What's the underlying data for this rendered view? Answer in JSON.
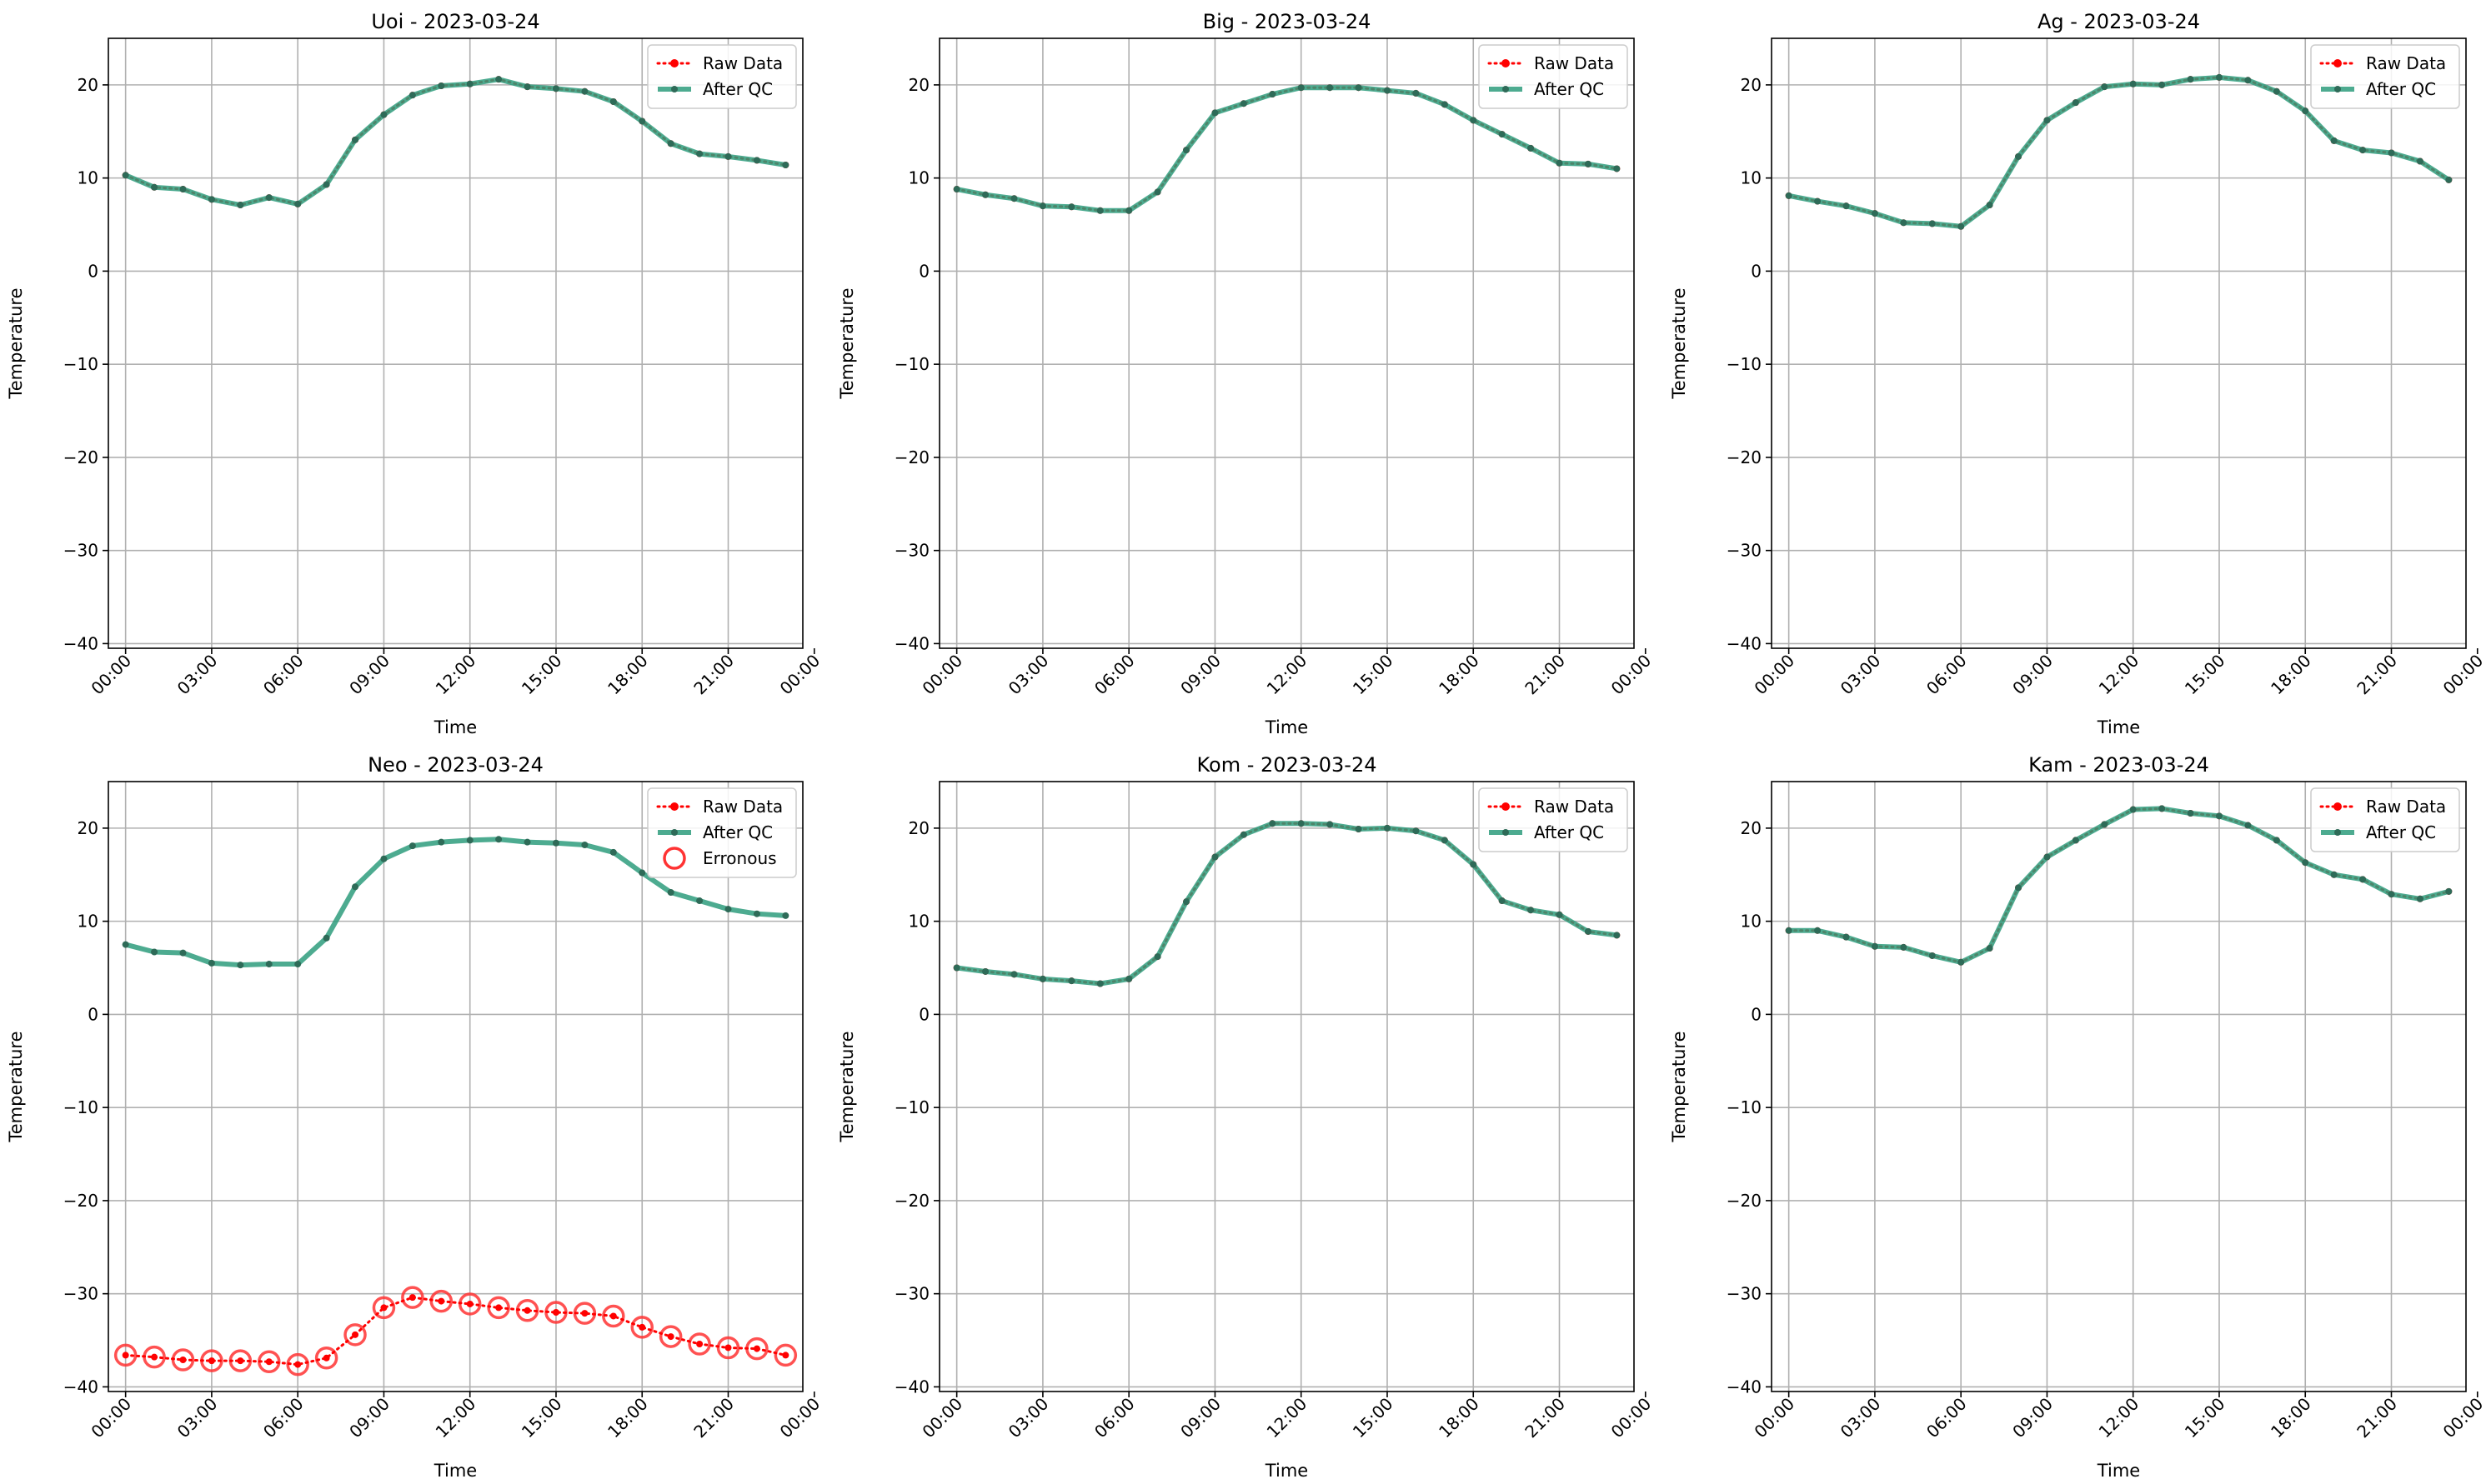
{
  "figure": {
    "colors": {
      "raw": "#ff0000",
      "qc": "#2e9c7c",
      "qc_marker": "#2e6b58",
      "erroneous": "#ff3333",
      "grid": "#b0b0b0",
      "axis": "#000000"
    }
  },
  "chart_data": [
    {
      "type": "line",
      "title": "Uoi - 2023-03-24",
      "xlabel": "Time",
      "ylabel": "Temperature",
      "ylim": [
        -40.5,
        25
      ],
      "xlim": [
        -0.6,
        23.6
      ],
      "yticks": [
        "−40",
        "−30",
        "−20",
        "−10",
        "0",
        "10",
        "20"
      ],
      "xticks": [
        "00:00",
        "03:00",
        "06:00",
        "09:00",
        "12:00",
        "15:00",
        "18:00",
        "21:00",
        "00:00"
      ],
      "legend": {
        "placement": "top-right",
        "entries": [
          "Raw Data",
          "After QC"
        ]
      },
      "grid": true,
      "x_hours": [
        0,
        1,
        2,
        3,
        4,
        5,
        6,
        7,
        8,
        9,
        10,
        11,
        12,
        13,
        14,
        15,
        16,
        17,
        18,
        19,
        20,
        21,
        22,
        23
      ],
      "series": [
        {
          "name": "Raw Data",
          "style": "dotted-red",
          "values": [
            10.3,
            9.0,
            8.8,
            7.7,
            7.1,
            7.9,
            7.2,
            9.3,
            14.1,
            16.8,
            18.9,
            19.9,
            20.1,
            20.6,
            19.8,
            19.6,
            19.3,
            18.2,
            16.1,
            13.7,
            12.6,
            12.3,
            11.9,
            11.4
          ]
        },
        {
          "name": "After QC",
          "style": "solid-green",
          "values": [
            10.3,
            9.0,
            8.8,
            7.7,
            7.1,
            7.9,
            7.2,
            9.3,
            14.1,
            16.8,
            18.9,
            19.9,
            20.1,
            20.6,
            19.8,
            19.6,
            19.3,
            18.2,
            16.1,
            13.7,
            12.6,
            12.3,
            11.9,
            11.4
          ]
        }
      ]
    },
    {
      "type": "line",
      "title": "Big - 2023-03-24",
      "xlabel": "Time",
      "ylabel": "Temperature",
      "ylim": [
        -40.5,
        25
      ],
      "xlim": [
        -0.6,
        23.6
      ],
      "yticks": [
        "−40",
        "−30",
        "−20",
        "−10",
        "0",
        "10",
        "20"
      ],
      "xticks": [
        "00:00",
        "03:00",
        "06:00",
        "09:00",
        "12:00",
        "15:00",
        "18:00",
        "21:00",
        "00:00"
      ],
      "legend": {
        "placement": "top-right",
        "entries": [
          "Raw Data",
          "After QC"
        ]
      },
      "grid": true,
      "x_hours": [
        0,
        1,
        2,
        3,
        4,
        5,
        6,
        7,
        8,
        9,
        10,
        11,
        12,
        13,
        14,
        15,
        16,
        17,
        18,
        19,
        20,
        21,
        22,
        23
      ],
      "series": [
        {
          "name": "Raw Data",
          "style": "dotted-red",
          "values": [
            8.8,
            8.2,
            7.8,
            7.0,
            6.9,
            6.5,
            6.5,
            8.5,
            13.0,
            17.0,
            18.0,
            19.0,
            19.7,
            19.7,
            19.7,
            19.4,
            19.1,
            17.9,
            16.2,
            14.7,
            13.2,
            11.6,
            11.5,
            11.0
          ]
        },
        {
          "name": "After QC",
          "style": "solid-green",
          "values": [
            8.8,
            8.2,
            7.8,
            7.0,
            6.9,
            6.5,
            6.5,
            8.5,
            13.0,
            17.0,
            18.0,
            19.0,
            19.7,
            19.7,
            19.7,
            19.4,
            19.1,
            17.9,
            16.2,
            14.7,
            13.2,
            11.6,
            11.5,
            11.0
          ]
        }
      ]
    },
    {
      "type": "line",
      "title": "Ag - 2023-03-24",
      "xlabel": "Time",
      "ylabel": "Temperature",
      "ylim": [
        -40.5,
        25
      ],
      "xlim": [
        -0.6,
        23.6
      ],
      "yticks": [
        "−40",
        "−30",
        "−20",
        "−10",
        "0",
        "10",
        "20"
      ],
      "xticks": [
        "00:00",
        "03:00",
        "06:00",
        "09:00",
        "12:00",
        "15:00",
        "18:00",
        "21:00",
        "00:00"
      ],
      "legend": {
        "placement": "top-right",
        "entries": [
          "Raw Data",
          "After QC"
        ]
      },
      "grid": true,
      "x_hours": [
        0,
        1,
        2,
        3,
        4,
        5,
        6,
        7,
        8,
        9,
        10,
        11,
        12,
        13,
        14,
        15,
        16,
        17,
        18,
        19,
        20,
        21,
        22,
        23
      ],
      "series": [
        {
          "name": "Raw Data",
          "style": "dotted-red",
          "values": [
            8.1,
            7.5,
            7.0,
            6.2,
            5.2,
            5.1,
            4.8,
            7.1,
            12.3,
            16.2,
            18.1,
            19.8,
            20.1,
            20.0,
            20.6,
            20.8,
            20.5,
            19.3,
            17.2,
            14.0,
            13.0,
            12.7,
            11.8,
            9.8
          ]
        },
        {
          "name": "After QC",
          "style": "solid-green",
          "values": [
            8.1,
            7.5,
            7.0,
            6.2,
            5.2,
            5.1,
            4.8,
            7.1,
            12.3,
            16.2,
            18.1,
            19.8,
            20.1,
            20.0,
            20.6,
            20.8,
            20.5,
            19.3,
            17.2,
            14.0,
            13.0,
            12.7,
            11.8,
            9.8
          ]
        }
      ]
    },
    {
      "type": "line",
      "title": "Neo - 2023-03-24",
      "xlabel": "Time",
      "ylabel": "Temperature",
      "ylim": [
        -40.5,
        25
      ],
      "xlim": [
        -0.6,
        23.6
      ],
      "yticks": [
        "−40",
        "−30",
        "−20",
        "−10",
        "0",
        "10",
        "20"
      ],
      "xticks": [
        "00:00",
        "03:00",
        "06:00",
        "09:00",
        "12:00",
        "15:00",
        "18:00",
        "21:00",
        "00:00"
      ],
      "legend": {
        "placement": "top-right",
        "entries": [
          "Raw Data",
          "After QC",
          "Erronous"
        ]
      },
      "grid": true,
      "x_hours": [
        0,
        1,
        2,
        3,
        4,
        5,
        6,
        7,
        8,
        9,
        10,
        11,
        12,
        13,
        14,
        15,
        16,
        17,
        18,
        19,
        20,
        21,
        22,
        23
      ],
      "series": [
        {
          "name": "Raw Data",
          "style": "dotted-red",
          "erroneous": true,
          "values": [
            -36.6,
            -36.8,
            -37.1,
            -37.2,
            -37.2,
            -37.3,
            -37.6,
            -36.9,
            -34.4,
            -31.5,
            -30.4,
            -30.8,
            -31.1,
            -31.5,
            -31.8,
            -32.0,
            -32.1,
            -32.4,
            -33.6,
            -34.6,
            -35.4,
            -35.8,
            -35.9,
            -36.6
          ]
        },
        {
          "name": "After QC",
          "style": "solid-green",
          "values": [
            7.5,
            6.7,
            6.6,
            5.5,
            5.3,
            5.4,
            5.4,
            8.2,
            13.7,
            16.7,
            18.1,
            18.5,
            18.7,
            18.8,
            18.5,
            18.4,
            18.2,
            17.4,
            15.2,
            13.1,
            12.2,
            11.3,
            10.8,
            10.6
          ]
        }
      ]
    },
    {
      "type": "line",
      "title": "Kom - 2023-03-24",
      "xlabel": "Time",
      "ylabel": "Temperature",
      "ylim": [
        -40.5,
        25
      ],
      "xlim": [
        -0.6,
        23.6
      ],
      "yticks": [
        "−40",
        "−30",
        "−20",
        "−10",
        "0",
        "10",
        "20"
      ],
      "xticks": [
        "00:00",
        "03:00",
        "06:00",
        "09:00",
        "12:00",
        "15:00",
        "18:00",
        "21:00",
        "00:00"
      ],
      "legend": {
        "placement": "top-right",
        "entries": [
          "Raw Data",
          "After QC"
        ]
      },
      "grid": true,
      "x_hours": [
        0,
        1,
        2,
        3,
        4,
        5,
        6,
        7,
        8,
        9,
        10,
        11,
        12,
        13,
        14,
        15,
        16,
        17,
        18,
        19,
        20,
        21,
        22,
        23
      ],
      "series": [
        {
          "name": "Raw Data",
          "style": "dotted-red",
          "values": [
            5.0,
            4.6,
            4.3,
            3.8,
            3.6,
            3.3,
            3.8,
            6.2,
            12.1,
            16.9,
            19.3,
            20.5,
            20.5,
            20.4,
            19.9,
            20.0,
            19.7,
            18.7,
            16.1,
            12.2,
            11.2,
            10.7,
            8.9,
            8.5
          ]
        },
        {
          "name": "After QC",
          "style": "solid-green",
          "values": [
            5.0,
            4.6,
            4.3,
            3.8,
            3.6,
            3.3,
            3.8,
            6.2,
            12.1,
            16.9,
            19.3,
            20.5,
            20.5,
            20.4,
            19.9,
            20.0,
            19.7,
            18.7,
            16.1,
            12.2,
            11.2,
            10.7,
            8.9,
            8.5
          ]
        }
      ]
    },
    {
      "type": "line",
      "title": "Kam - 2023-03-24",
      "xlabel": "Time",
      "ylabel": "Temperature",
      "ylim": [
        -40.5,
        25
      ],
      "xlim": [
        -0.6,
        23.6
      ],
      "yticks": [
        "−40",
        "−30",
        "−20",
        "−10",
        "0",
        "10",
        "20"
      ],
      "xticks": [
        "00:00",
        "03:00",
        "06:00",
        "09:00",
        "12:00",
        "15:00",
        "18:00",
        "21:00",
        "00:00"
      ],
      "legend": {
        "placement": "top-right",
        "entries": [
          "Raw Data",
          "After QC"
        ]
      },
      "grid": true,
      "x_hours": [
        0,
        1,
        2,
        3,
        4,
        5,
        6,
        7,
        8,
        9,
        10,
        11,
        12,
        13,
        14,
        15,
        16,
        17,
        18,
        19,
        20,
        21,
        22,
        23
      ],
      "series": [
        {
          "name": "Raw Data",
          "style": "dotted-red",
          "values": [
            9.0,
            9.0,
            8.3,
            7.3,
            7.2,
            6.3,
            5.6,
            7.1,
            13.6,
            16.9,
            18.7,
            20.4,
            22.0,
            22.1,
            21.6,
            21.3,
            20.3,
            18.7,
            16.3,
            15.0,
            14.5,
            12.9,
            12.4,
            13.2
          ]
        },
        {
          "name": "After QC",
          "style": "solid-green",
          "values": [
            9.0,
            9.0,
            8.3,
            7.3,
            7.2,
            6.3,
            5.6,
            7.1,
            13.6,
            16.9,
            18.7,
            20.4,
            22.0,
            22.1,
            21.6,
            21.3,
            20.3,
            18.7,
            16.3,
            15.0,
            14.5,
            12.9,
            12.4,
            13.2
          ]
        }
      ]
    }
  ]
}
